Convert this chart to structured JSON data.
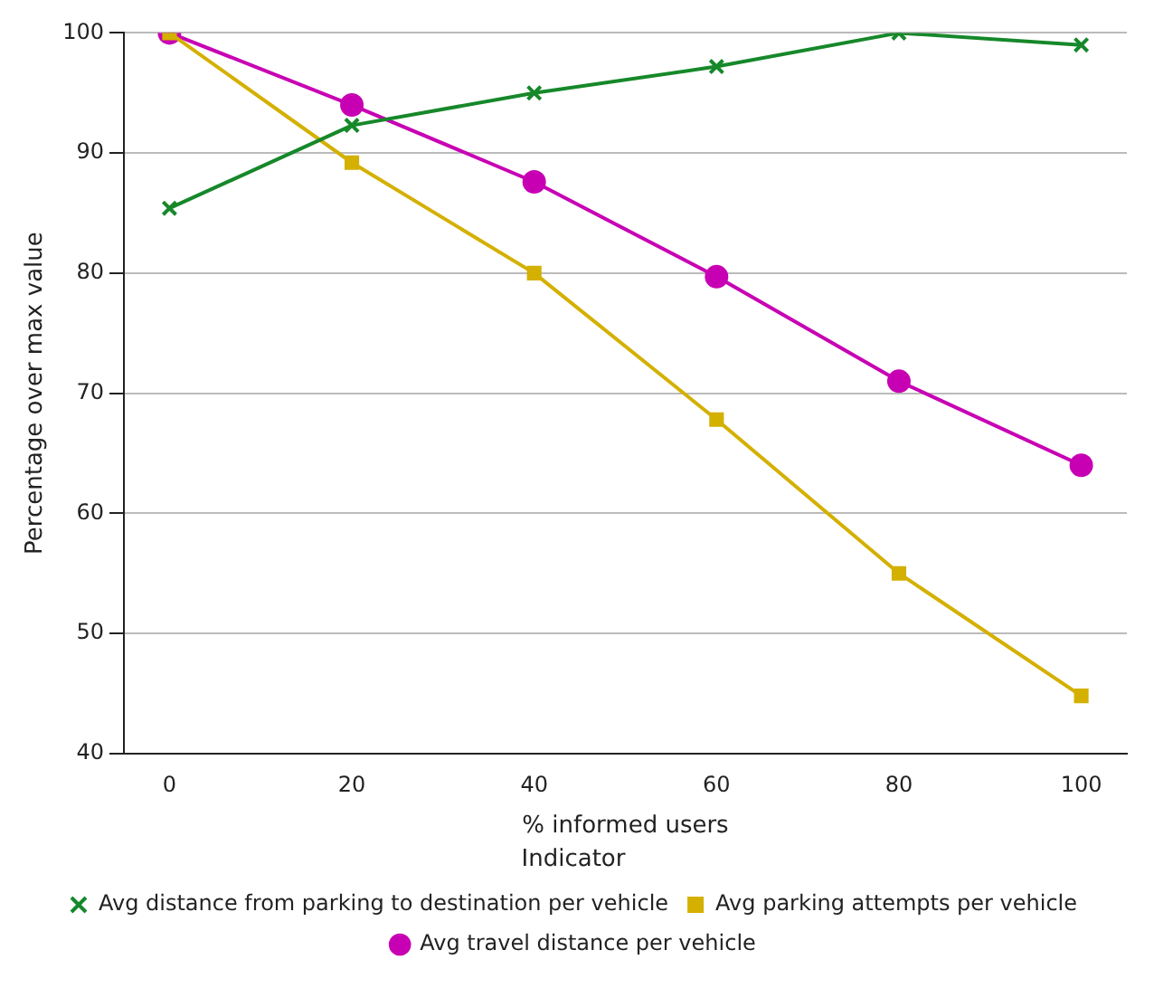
{
  "chart_data": {
    "type": "line",
    "xlabel": "% informed users",
    "ylabel": "Percentage over max value",
    "legend_title": "Indicator",
    "x": [
      0,
      20,
      40,
      60,
      80,
      100
    ],
    "series": [
      {
        "name": "Avg distance from parking to destination per vehicle",
        "color": "#16882a",
        "marker": "cross",
        "values": [
          85.4,
          92.3,
          95,
          97.2,
          100,
          99
        ]
      },
      {
        "name": "Avg parking attempts per vehicle",
        "color": "#d4b000",
        "marker": "square",
        "values": [
          100,
          89.2,
          80,
          67.8,
          55,
          44.8
        ]
      },
      {
        "name": "Avg travel distance per vehicle",
        "color": "#c800b4",
        "marker": "circle",
        "values": [
          100,
          94,
          87.6,
          79.7,
          71,
          64
        ]
      }
    ],
    "xlim": [
      -5,
      105
    ],
    "xticks": [
      0,
      20,
      40,
      60,
      80,
      100
    ],
    "ylim": [
      40,
      100
    ],
    "yticks": [
      40,
      50,
      60,
      70,
      80,
      90,
      100
    ],
    "grid": "y",
    "legend": "bottom"
  }
}
